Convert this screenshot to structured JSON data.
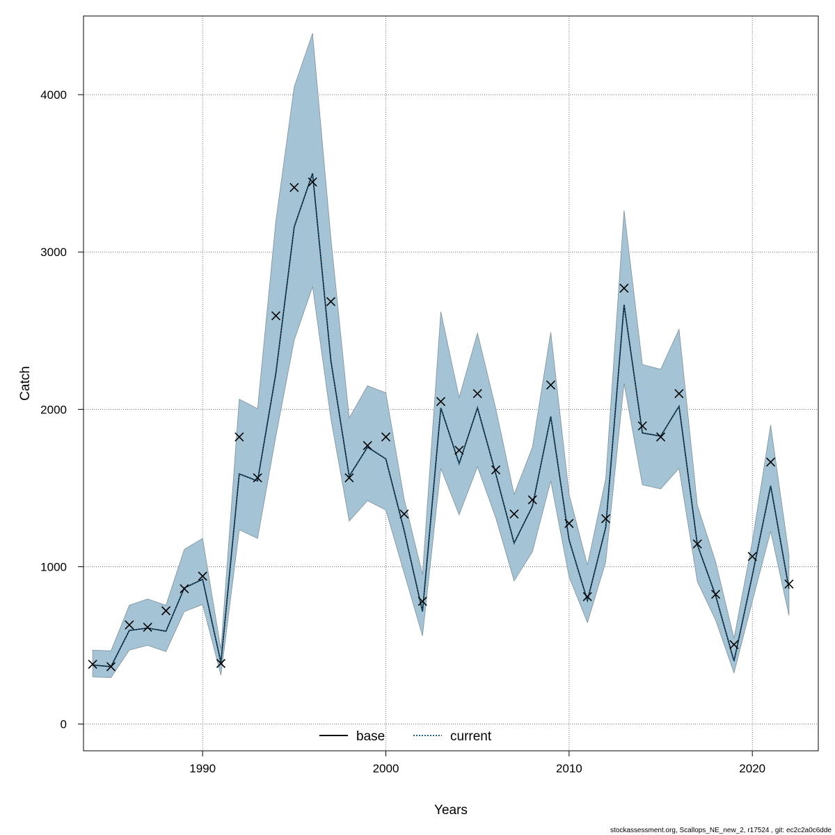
{
  "chart_data": {
    "type": "line",
    "xlabel": "Years",
    "ylabel": "Catch",
    "xlim": [
      1983.5,
      2023.6
    ],
    "ylim": [
      -170,
      4500
    ],
    "x_ticks": [
      1990,
      2000,
      2010,
      2020
    ],
    "y_ticks": [
      0,
      1000,
      2000,
      3000,
      4000
    ],
    "grid": true,
    "legend_position": "bottom-center",
    "colors": {
      "band": "#a4c4d6",
      "band_edge": "#7d8f99",
      "current": "#1f5f86",
      "base": "#000000"
    },
    "x": [
      1984,
      1985,
      1986,
      1987,
      1988,
      1989,
      1990,
      1991,
      1992,
      1993,
      1994,
      1995,
      1996,
      1997,
      1998,
      1999,
      2000,
      2001,
      2002,
      2003,
      2004,
      2005,
      2006,
      2007,
      2008,
      2009,
      2010,
      2011,
      2012,
      2013,
      2014,
      2015,
      2016,
      2017,
      2018,
      2019,
      2020,
      2021,
      2022
    ],
    "band_upper": [
      470,
      465,
      755,
      795,
      755,
      1110,
      1180,
      475,
      2065,
      2005,
      3200,
      4050,
      4390,
      3090,
      1945,
      2150,
      2105,
      1430,
      950,
      2620,
      2075,
      2485,
      2005,
      1460,
      1760,
      2490,
      1460,
      1010,
      1560,
      3265,
      2285,
      2255,
      2510,
      1390,
      1030,
      545,
      1160,
      1900,
      1075
    ],
    "band_lower": [
      300,
      295,
      470,
      500,
      460,
      715,
      760,
      310,
      1235,
      1180,
      1830,
      2440,
      2780,
      1940,
      1290,
      1420,
      1360,
      960,
      560,
      1625,
      1330,
      1635,
      1310,
      910,
      1095,
      1545,
      935,
      645,
      1030,
      2165,
      1520,
      1495,
      1625,
      905,
      660,
      325,
      780,
      1225,
      690
    ],
    "series": [
      {
        "name": "base",
        "style": "solid",
        "values": [
          375,
          365,
          595,
          610,
          590,
          865,
          920,
          390,
          1590,
          1545,
          2230,
          3160,
          3500,
          2310,
          1575,
          1760,
          1685,
          1230,
          715,
          2010,
          1655,
          2010,
          1590,
          1150,
          1385,
          1955,
          1170,
          785,
          1250,
          2665,
          1850,
          1830,
          2020,
          1140,
          815,
          400,
          945,
          1515,
          860
        ]
      },
      {
        "name": "current",
        "style": "dotted",
        "values": [
          375,
          365,
          595,
          610,
          590,
          865,
          920,
          390,
          1590,
          1545,
          2230,
          3160,
          3500,
          2310,
          1575,
          1760,
          1685,
          1230,
          715,
          2010,
          1655,
          2010,
          1590,
          1150,
          1385,
          1955,
          1170,
          785,
          1250,
          2665,
          1850,
          1830,
          2020,
          1140,
          815,
          400,
          945,
          1515,
          860
        ]
      }
    ],
    "observed": [
      380,
      365,
      630,
      615,
      720,
      860,
      940,
      385,
      1825,
      1565,
      2595,
      3410,
      3445,
      2685,
      1565,
      1770,
      1825,
      1335,
      780,
      2050,
      1740,
      2100,
      1615,
      1335,
      1425,
      2155,
      1275,
      810,
      1305,
      2770,
      1895,
      1825,
      2100,
      1145,
      825,
      505,
      1065,
      1665,
      890
    ]
  },
  "legend": {
    "base_label": "base",
    "current_label": "current"
  },
  "footer": "stockassessment.org, Scallops_NE_new_2, r17524 , git: ec2c2a0c6dde"
}
